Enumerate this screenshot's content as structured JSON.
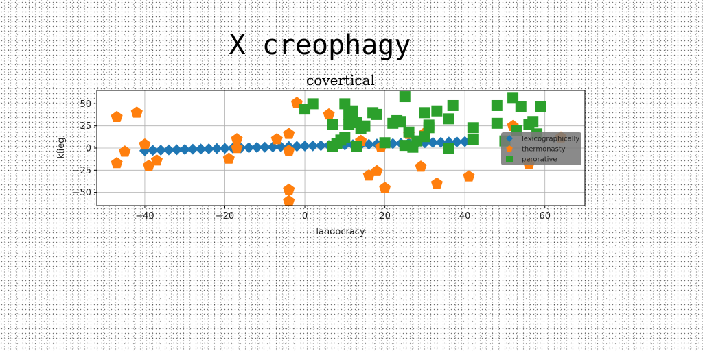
{
  "suptitle": "X creophagy",
  "chart_data": {
    "type": "scatter",
    "title": "covertical",
    "xlabel": "landocracy",
    "ylabel": "klieg",
    "xlim": [
      -52,
      70
    ],
    "ylim": [
      -65,
      65
    ],
    "xticks": [
      -40,
      -20,
      0,
      20,
      40,
      60
    ],
    "xtick_labels": [
      "−40",
      "−20",
      "0",
      "20",
      "40",
      "60"
    ],
    "yticks": [
      -50,
      -25,
      0,
      25,
      50
    ],
    "ytick_labels": [
      "−50",
      "−25",
      "0",
      "25",
      "50"
    ],
    "grid": true,
    "legend_position": "center-right",
    "series": [
      {
        "name": "lexicographically",
        "color": "#1f77b4",
        "marker": "diamond",
        "x": [
          -40,
          -38,
          -36,
          -34,
          -32,
          -30,
          -28,
          -26,
          -24,
          -22,
          -20,
          -18,
          -16,
          -14,
          -12,
          -10,
          -8,
          -6,
          -4,
          -2,
          0,
          2,
          4,
          6,
          8,
          10,
          12,
          14,
          16,
          18,
          20,
          22,
          24,
          26,
          28,
          30,
          32,
          34,
          36,
          38,
          40
        ],
        "y": [
          -3,
          -2.5,
          -2.3,
          -2,
          -1.8,
          -1.5,
          -1.3,
          -1,
          -0.8,
          -0.5,
          -0.3,
          0,
          0.3,
          0.5,
          0.8,
          1,
          1.3,
          1.5,
          1.8,
          2,
          2.3,
          2.5,
          2.8,
          3,
          3.3,
          3.5,
          3.8,
          4,
          4.3,
          4.5,
          4.8,
          5,
          5.3,
          5.5,
          5.8,
          6,
          6.3,
          6.5,
          6.8,
          7,
          7.3
        ]
      },
      {
        "name": "thermonasty",
        "color": "#ff7f0e",
        "marker": "pentagon",
        "x": [
          -47,
          -47,
          -45,
          -42,
          -40,
          -39,
          -37,
          -19,
          -17,
          -17,
          -7,
          -4,
          -4,
          -4,
          -4,
          -2,
          6,
          14,
          16,
          18,
          19,
          20,
          26,
          29,
          30,
          33,
          41,
          52,
          56,
          64
        ],
        "y": [
          35,
          -17,
          -4,
          40,
          4,
          -20,
          -14,
          -12,
          10,
          0,
          10,
          16,
          -3,
          -47,
          -60,
          51,
          38,
          8,
          -31,
          -26,
          1,
          -45,
          16,
          -21,
          17,
          -40,
          -32,
          25,
          -18,
          12
        ]
      },
      {
        "name": "perorative",
        "color": "#2ca02c",
        "marker": "square",
        "x": [
          0,
          2,
          7,
          7,
          8,
          9,
          10,
          10,
          11,
          11,
          12,
          12,
          13,
          13,
          14,
          15,
          17,
          18,
          20,
          22,
          23,
          24,
          25,
          25,
          26,
          27,
          28,
          30,
          30,
          31,
          31,
          33,
          36,
          36,
          37,
          42,
          42,
          48,
          48,
          50,
          52,
          53,
          54,
          56,
          57,
          58,
          59
        ],
        "y": [
          44,
          50,
          27,
          2,
          5,
          9,
          50,
          12,
          27,
          38,
          42,
          30,
          2,
          29,
          22,
          25,
          40,
          38,
          6,
          28,
          31,
          30,
          58,
          3,
          18,
          1,
          8,
          13,
          40,
          23,
          26,
          42,
          0,
          33,
          48,
          23,
          10,
          48,
          28,
          8,
          57,
          20,
          47,
          27,
          30,
          16,
          47
        ]
      }
    ]
  }
}
